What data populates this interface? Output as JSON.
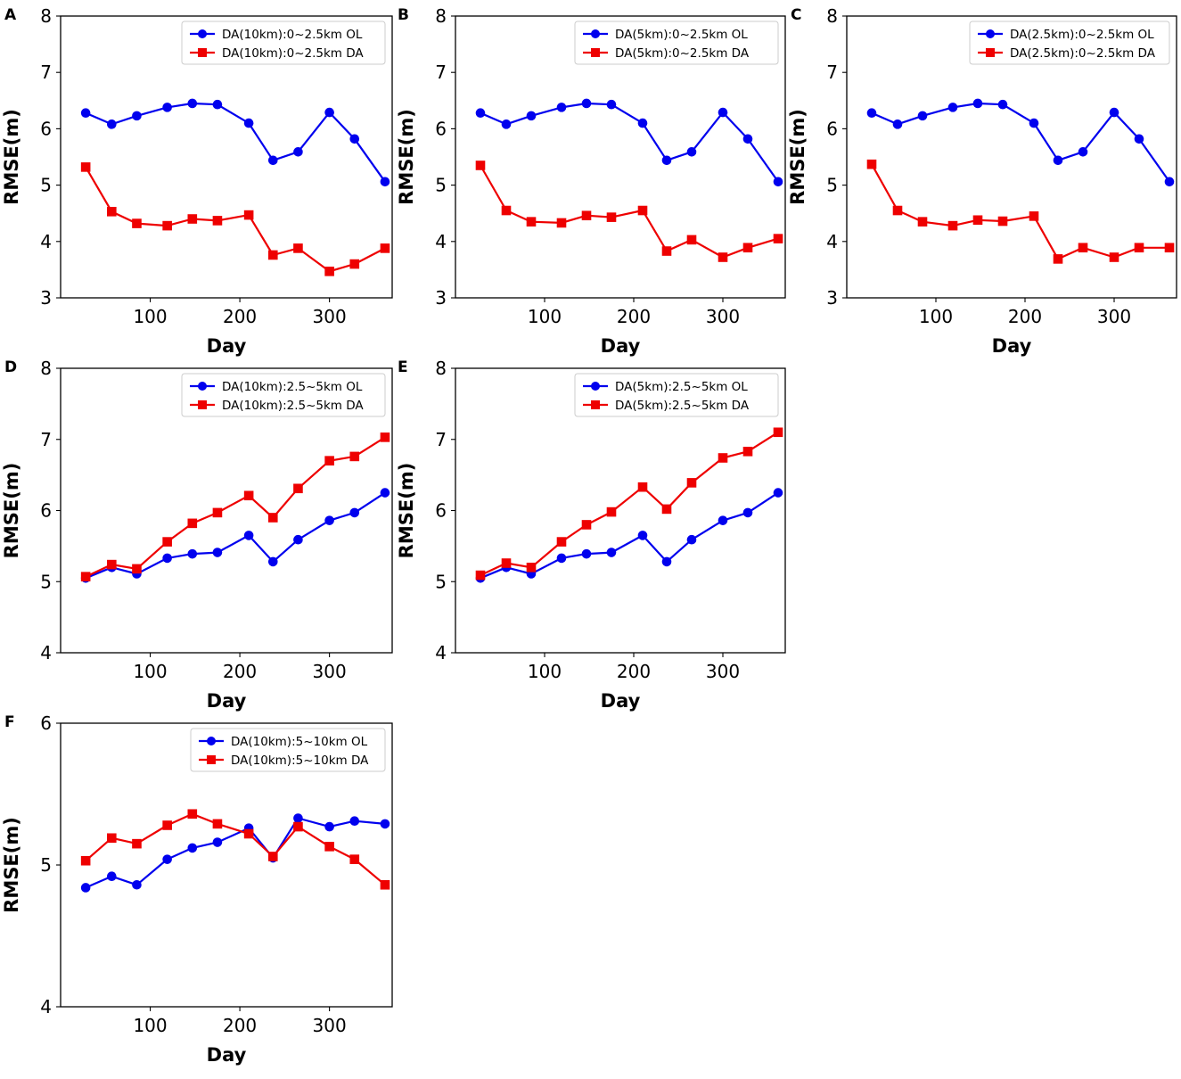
{
  "colors": {
    "ol": "#0000ee",
    "da": "#ee0000"
  },
  "chart_data": [
    {
      "panel": "A",
      "type": "line",
      "xlabel": "Day",
      "ylabel": "RMSE(m)",
      "xlim": [
        0,
        370
      ],
      "ylim": [
        3,
        8
      ],
      "xticks": [
        100,
        200,
        300
      ],
      "yticks": [
        3,
        4,
        5,
        6,
        7,
        8
      ],
      "x": [
        28,
        57,
        85,
        119,
        147,
        175,
        210,
        237,
        265,
        300,
        328,
        362
      ],
      "series": [
        {
          "name": "DA(10km):0~2.5km OL",
          "marker": "circle",
          "color": "#0000ee",
          "values": [
            6.28,
            6.08,
            6.23,
            6.38,
            6.45,
            6.43,
            6.1,
            5.44,
            5.59,
            6.29,
            5.82,
            5.06
          ]
        },
        {
          "name": "DA(10km):0~2.5km DA",
          "marker": "square",
          "color": "#ee0000",
          "values": [
            5.32,
            4.53,
            4.32,
            4.28,
            4.4,
            4.37,
            4.47,
            3.76,
            3.88,
            3.47,
            3.6,
            3.88
          ]
        }
      ]
    },
    {
      "panel": "B",
      "type": "line",
      "xlabel": "Day",
      "ylabel": "RMSE(m)",
      "xlim": [
        0,
        370
      ],
      "ylim": [
        3,
        8
      ],
      "xticks": [
        100,
        200,
        300
      ],
      "yticks": [
        3,
        4,
        5,
        6,
        7,
        8
      ],
      "x": [
        28,
        57,
        85,
        119,
        147,
        175,
        210,
        237,
        265,
        300,
        328,
        362
      ],
      "series": [
        {
          "name": "DA(5km):0~2.5km OL",
          "marker": "circle",
          "color": "#0000ee",
          "values": [
            6.28,
            6.08,
            6.23,
            6.38,
            6.45,
            6.43,
            6.1,
            5.44,
            5.59,
            6.29,
            5.82,
            5.06
          ]
        },
        {
          "name": "DA(5km):0~2.5km DA",
          "marker": "square",
          "color": "#ee0000",
          "values": [
            5.35,
            4.55,
            4.35,
            4.33,
            4.46,
            4.43,
            4.55,
            3.83,
            4.03,
            3.72,
            3.89,
            4.05
          ]
        }
      ]
    },
    {
      "panel": "C",
      "type": "line",
      "xlabel": "Day",
      "ylabel": "RMSE(m)",
      "xlim": [
        0,
        370
      ],
      "ylim": [
        3,
        8
      ],
      "xticks": [
        100,
        200,
        300
      ],
      "yticks": [
        3,
        4,
        5,
        6,
        7,
        8
      ],
      "x": [
        28,
        57,
        85,
        119,
        147,
        175,
        210,
        237,
        265,
        300,
        328,
        362
      ],
      "series": [
        {
          "name": "DA(2.5km):0~2.5km OL",
          "marker": "circle",
          "color": "#0000ee",
          "values": [
            6.28,
            6.08,
            6.23,
            6.38,
            6.45,
            6.43,
            6.1,
            5.44,
            5.59,
            6.29,
            5.82,
            5.06
          ]
        },
        {
          "name": "DA(2.5km):0~2.5km DA",
          "marker": "square",
          "color": "#ee0000",
          "values": [
            5.37,
            4.55,
            4.35,
            4.28,
            4.38,
            4.36,
            4.45,
            3.69,
            3.89,
            3.72,
            3.89,
            3.89
          ]
        }
      ]
    },
    {
      "panel": "D",
      "type": "line",
      "xlabel": "Day",
      "ylabel": "RMSE(m)",
      "xlim": [
        0,
        370
      ],
      "ylim": [
        4,
        8
      ],
      "xticks": [
        100,
        200,
        300
      ],
      "yticks": [
        4,
        5,
        6,
        7,
        8
      ],
      "x": [
        28,
        57,
        85,
        119,
        147,
        175,
        210,
        237,
        265,
        300,
        328,
        362
      ],
      "series": [
        {
          "name": "DA(10km):2.5~5km OL",
          "marker": "circle",
          "color": "#0000ee",
          "values": [
            5.05,
            5.2,
            5.11,
            5.33,
            5.39,
            5.41,
            5.65,
            5.28,
            5.59,
            5.86,
            5.97,
            6.25
          ]
        },
        {
          "name": "DA(10km):2.5~5km DA",
          "marker": "square",
          "color": "#ee0000",
          "values": [
            5.07,
            5.24,
            5.18,
            5.56,
            5.82,
            5.97,
            6.21,
            5.9,
            6.31,
            6.7,
            6.76,
            7.03
          ]
        }
      ]
    },
    {
      "panel": "E",
      "type": "line",
      "xlabel": "Day",
      "ylabel": "RMSE(m)",
      "xlim": [
        0,
        370
      ],
      "ylim": [
        4,
        8
      ],
      "xticks": [
        100,
        200,
        300
      ],
      "yticks": [
        4,
        5,
        6,
        7,
        8
      ],
      "x": [
        28,
        57,
        85,
        119,
        147,
        175,
        210,
        237,
        265,
        300,
        328,
        362
      ],
      "series": [
        {
          "name": "DA(5km):2.5~5km OL",
          "marker": "circle",
          "color": "#0000ee",
          "values": [
            5.05,
            5.2,
            5.11,
            5.33,
            5.39,
            5.41,
            5.65,
            5.28,
            5.59,
            5.86,
            5.97,
            6.25
          ]
        },
        {
          "name": "DA(5km):2.5~5km DA",
          "marker": "square",
          "color": "#ee0000",
          "values": [
            5.09,
            5.26,
            5.2,
            5.56,
            5.8,
            5.98,
            6.33,
            6.02,
            6.39,
            6.74,
            6.83,
            7.1
          ]
        }
      ]
    },
    {
      "panel": "F",
      "type": "line",
      "xlabel": "Day",
      "ylabel": "RMSE(m)",
      "xlim": [
        0,
        370
      ],
      "ylim": [
        4,
        6
      ],
      "xticks": [
        100,
        200,
        300
      ],
      "yticks": [
        4,
        5,
        6
      ],
      "x": [
        28,
        57,
        85,
        119,
        147,
        175,
        210,
        237,
        265,
        300,
        328,
        362
      ],
      "series": [
        {
          "name": "DA(10km):5~10km OL",
          "marker": "circle",
          "color": "#0000ee",
          "values": [
            4.84,
            4.92,
            4.86,
            5.04,
            5.12,
            5.16,
            5.26,
            5.05,
            5.33,
            5.27,
            5.31,
            5.29
          ]
        },
        {
          "name": "DA(10km):5~10km DA",
          "marker": "square",
          "color": "#ee0000",
          "values": [
            5.03,
            5.19,
            5.15,
            5.28,
            5.36,
            5.29,
            5.22,
            5.06,
            5.27,
            5.13,
            5.04,
            4.86
          ]
        }
      ]
    }
  ]
}
